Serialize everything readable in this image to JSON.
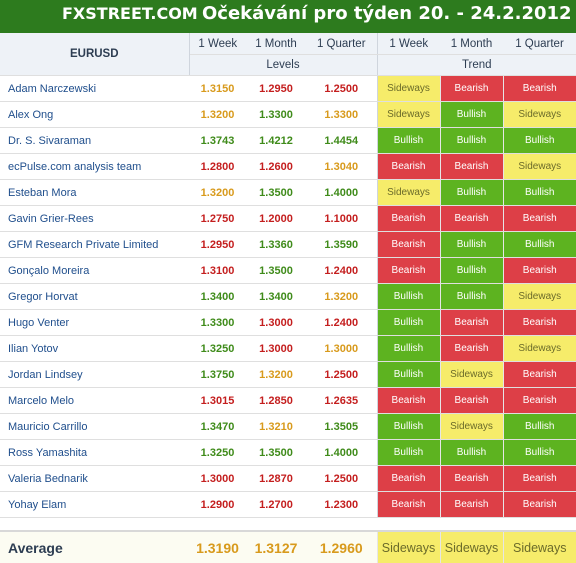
{
  "header": {
    "logo": "FXSTREET.COM",
    "title": "Očekávání pro týden 20. - 24.2.2012"
  },
  "pair": "EURUSD",
  "periods": [
    "1 Week",
    "1 Month",
    "1 Quarter"
  ],
  "groups": {
    "levels": "Levels",
    "trend": "Trend"
  },
  "colors": {
    "bullish": "#5db320",
    "bearish": "#dd3f47",
    "sideways": "#f6ec6a",
    "level_up": "#3f8b1a",
    "level_down": "#c41e1e",
    "level_flat": "#d89a1c"
  },
  "rows": [
    {
      "name": "Adam Narczewski",
      "levels": [
        "1.3150",
        "1.2950",
        "1.2500"
      ],
      "lc": [
        "flat",
        "down",
        "down"
      ],
      "trend": [
        "Sideways",
        "Bearish",
        "Bearish"
      ]
    },
    {
      "name": "Alex Ong",
      "levels": [
        "1.3200",
        "1.3300",
        "1.3300"
      ],
      "lc": [
        "flat",
        "up",
        "flat"
      ],
      "trend": [
        "Sideways",
        "Bullish",
        "Sideways"
      ]
    },
    {
      "name": "Dr. S. Sivaraman",
      "levels": [
        "1.3743",
        "1.4212",
        "1.4454"
      ],
      "lc": [
        "up",
        "up",
        "up"
      ],
      "trend": [
        "Bullish",
        "Bullish",
        "Bullish"
      ]
    },
    {
      "name": "ecPulse.com analysis team",
      "levels": [
        "1.2800",
        "1.2600",
        "1.3040"
      ],
      "lc": [
        "down",
        "down",
        "flat"
      ],
      "trend": [
        "Bearish",
        "Bearish",
        "Sideways"
      ]
    },
    {
      "name": "Esteban Mora",
      "levels": [
        "1.3200",
        "1.3500",
        "1.4000"
      ],
      "lc": [
        "flat",
        "up",
        "up"
      ],
      "trend": [
        "Sideways",
        "Bullish",
        "Bullish"
      ]
    },
    {
      "name": "Gavin Grier-Rees",
      "levels": [
        "1.2750",
        "1.2000",
        "1.1000"
      ],
      "lc": [
        "down",
        "down",
        "down"
      ],
      "trend": [
        "Bearish",
        "Bearish",
        "Bearish"
      ]
    },
    {
      "name": "GFM Research Private Limited",
      "levels": [
        "1.2950",
        "1.3360",
        "1.3590"
      ],
      "lc": [
        "down",
        "up",
        "up"
      ],
      "trend": [
        "Bearish",
        "Bullish",
        "Bullish"
      ]
    },
    {
      "name": "Gonçalo Moreira",
      "levels": [
        "1.3100",
        "1.3500",
        "1.2400"
      ],
      "lc": [
        "down",
        "up",
        "down"
      ],
      "trend": [
        "Bearish",
        "Bullish",
        "Bearish"
      ]
    },
    {
      "name": "Gregor Horvat",
      "levels": [
        "1.3400",
        "1.3400",
        "1.3200"
      ],
      "lc": [
        "up",
        "up",
        "flat"
      ],
      "trend": [
        "Bullish",
        "Bullish",
        "Sideways"
      ]
    },
    {
      "name": "Hugo Venter",
      "levels": [
        "1.3300",
        "1.3000",
        "1.2400"
      ],
      "lc": [
        "up",
        "down",
        "down"
      ],
      "trend": [
        "Bullish",
        "Bearish",
        "Bearish"
      ]
    },
    {
      "name": "Ilian Yotov",
      "levels": [
        "1.3250",
        "1.3000",
        "1.3000"
      ],
      "lc": [
        "up",
        "down",
        "flat"
      ],
      "trend": [
        "Bullish",
        "Bearish",
        "Sideways"
      ]
    },
    {
      "name": "Jordan Lindsey",
      "levels": [
        "1.3750",
        "1.3200",
        "1.2500"
      ],
      "lc": [
        "up",
        "flat",
        "down"
      ],
      "trend": [
        "Bullish",
        "Sideways",
        "Bearish"
      ]
    },
    {
      "name": "Marcelo Melo",
      "levels": [
        "1.3015",
        "1.2850",
        "1.2635"
      ],
      "lc": [
        "down",
        "down",
        "down"
      ],
      "trend": [
        "Bearish",
        "Bearish",
        "Bearish"
      ]
    },
    {
      "name": "Mauricio Carrillo",
      "levels": [
        "1.3470",
        "1.3210",
        "1.3505"
      ],
      "lc": [
        "up",
        "flat",
        "up"
      ],
      "trend": [
        "Bullish",
        "Sideways",
        "Bullish"
      ]
    },
    {
      "name": "Ross Yamashita",
      "levels": [
        "1.3250",
        "1.3500",
        "1.4000"
      ],
      "lc": [
        "up",
        "up",
        "up"
      ],
      "trend": [
        "Bullish",
        "Bullish",
        "Bullish"
      ]
    },
    {
      "name": "Valeria Bednarik",
      "levels": [
        "1.3000",
        "1.2870",
        "1.2500"
      ],
      "lc": [
        "down",
        "down",
        "down"
      ],
      "trend": [
        "Bearish",
        "Bearish",
        "Bearish"
      ]
    },
    {
      "name": "Yohay Elam",
      "levels": [
        "1.2900",
        "1.2700",
        "1.2300"
      ],
      "lc": [
        "down",
        "down",
        "down"
      ],
      "trend": [
        "Bearish",
        "Bearish",
        "Bearish"
      ]
    }
  ],
  "average": {
    "label": "Average",
    "levels": [
      "1.3190",
      "1.3127",
      "1.2960"
    ],
    "trend": [
      "Sideways",
      "Sideways",
      "Sideways"
    ]
  }
}
